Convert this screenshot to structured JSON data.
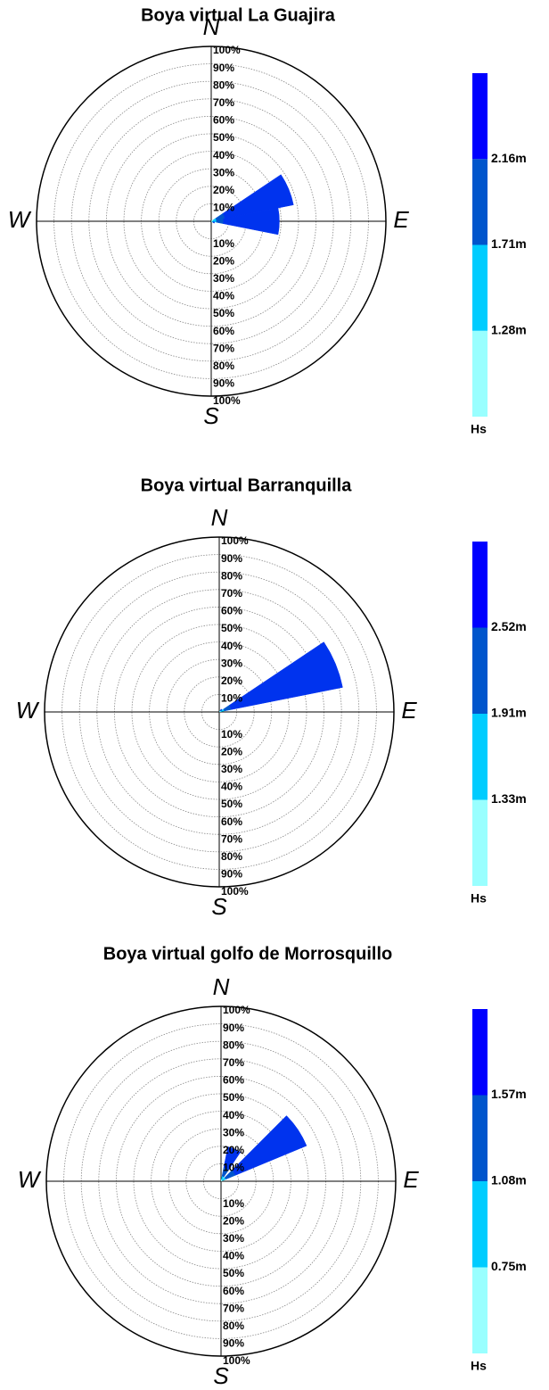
{
  "chart_data": [
    {
      "type": "rose",
      "title": "Boya virtual La Guajira",
      "compass": [
        "N",
        "E",
        "S",
        "W"
      ],
      "directions": [
        67.5,
        90,
        112.5
      ],
      "sector_width": 22.5,
      "series": [
        {
          "color": "#99ffff",
          "values": [
            1,
            1,
            0.5
          ]
        },
        {
          "color": "#00ccff",
          "values": [
            2,
            2,
            0.5
          ]
        },
        {
          "color": "#0055cc",
          "values": [
            5,
            4,
            0.5
          ]
        },
        {
          "color": "#0033ee",
          "values": [
            40,
            32,
            0.5
          ]
        }
      ],
      "rlim": [
        0,
        100
      ],
      "rticks": [
        {
          "value": 10,
          "label": "10%"
        },
        {
          "value": 20,
          "label": "20%"
        },
        {
          "value": 30,
          "label": "30%"
        },
        {
          "value": 40,
          "label": "40%"
        },
        {
          "value": 50,
          "label": "50%"
        },
        {
          "value": 60,
          "label": "60%"
        },
        {
          "value": 70,
          "label": "70%"
        },
        {
          "value": 80,
          "label": "80%"
        },
        {
          "value": 90,
          "label": "90%"
        },
        {
          "value": 100,
          "label": "100%"
        }
      ],
      "colorbar_title": "Hs",
      "colorbar_colors": [
        "#99ffff",
        "#00ccff",
        "#0055cc",
        "#0000ff"
      ],
      "colorbar_ticks": [
        {
          "value": 1.28,
          "label": "1.28m"
        },
        {
          "value": 1.71,
          "label": "1.71m"
        },
        {
          "value": 2.16,
          "label": "2.16m"
        }
      ]
    },
    {
      "type": "rose",
      "title": "Boya virtual Barranquilla",
      "compass": [
        "N",
        "E",
        "S",
        "W"
      ],
      "directions": [
        67.5,
        45
      ],
      "sector_width": 22.5,
      "series": [
        {
          "color": "#99ffff",
          "values": [
            1,
            0.5
          ]
        },
        {
          "color": "#00ccff",
          "values": [
            2,
            0.5
          ]
        },
        {
          "color": "#0055cc",
          "values": [
            4,
            0.5
          ]
        },
        {
          "color": "#0033ee",
          "values": [
            65,
            0.5
          ]
        }
      ],
      "rlim": [
        0,
        100
      ],
      "rticks": [
        {
          "value": 10,
          "label": "10%"
        },
        {
          "value": 20,
          "label": "20%"
        },
        {
          "value": 30,
          "label": "30%"
        },
        {
          "value": 40,
          "label": "40%"
        },
        {
          "value": 50,
          "label": "50%"
        },
        {
          "value": 60,
          "label": "60%"
        },
        {
          "value": 70,
          "label": "70%"
        },
        {
          "value": 80,
          "label": "80%"
        },
        {
          "value": 90,
          "label": "90%"
        },
        {
          "value": 100,
          "label": "100%"
        }
      ],
      "colorbar_title": "Hs",
      "colorbar_colors": [
        "#99ffff",
        "#00ccff",
        "#0055cc",
        "#0000ff"
      ],
      "colorbar_ticks": [
        {
          "value": 1.33,
          "label": "1.33m"
        },
        {
          "value": 1.91,
          "label": "1.91m"
        },
        {
          "value": 2.52,
          "label": "2.52m"
        }
      ]
    },
    {
      "type": "rose",
      "title": "Boya virtual golfo de Morrosquillo",
      "compass": [
        "N",
        "E",
        "S",
        "W"
      ],
      "directions": [
        22.5,
        56.25
      ],
      "sector_width": 22.5,
      "series": [
        {
          "color": "#99ffff",
          "values": [
            1,
            1
          ]
        },
        {
          "color": "#00ccff",
          "values": [
            2,
            2
          ]
        },
        {
          "color": "#0055cc",
          "values": [
            5,
            6
          ]
        },
        {
          "color": "#0033ee",
          "values": [
            12,
            44
          ]
        }
      ],
      "rlim": [
        0,
        100
      ],
      "rticks": [
        {
          "value": 10,
          "label": "10%"
        },
        {
          "value": 20,
          "label": "20%"
        },
        {
          "value": 30,
          "label": "30%"
        },
        {
          "value": 40,
          "label": "40%"
        },
        {
          "value": 50,
          "label": "50%"
        },
        {
          "value": 60,
          "label": "60%"
        },
        {
          "value": 70,
          "label": "70%"
        },
        {
          "value": 80,
          "label": "80%"
        },
        {
          "value": 90,
          "label": "90%"
        },
        {
          "value": 100,
          "label": "100%"
        }
      ],
      "colorbar_title": "Hs",
      "colorbar_colors": [
        "#99ffff",
        "#00ccff",
        "#0055cc",
        "#0000ff"
      ],
      "colorbar_ticks": [
        {
          "value": 0.75,
          "label": "0.75m"
        },
        {
          "value": 1.08,
          "label": "1.08m"
        },
        {
          "value": 1.57,
          "label": "1.57m"
        }
      ]
    }
  ]
}
